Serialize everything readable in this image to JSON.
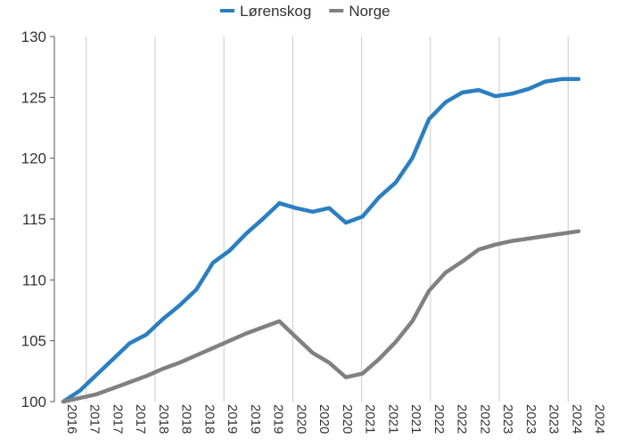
{
  "chart_data": {
    "type": "line",
    "title": "",
    "xlabel": "",
    "ylabel": "",
    "ylim": [
      100,
      130
    ],
    "yticks": [
      100,
      105,
      110,
      115,
      120,
      125,
      130
    ],
    "grid": "vertical",
    "legend_position": "top-center",
    "x_tick_labels": [
      "2016",
      "2017",
      "2017",
      "2017",
      "2018",
      "2018",
      "2018",
      "2019",
      "2019",
      "2019",
      "2020",
      "2020",
      "2020",
      "2021",
      "2021",
      "2021",
      "2022",
      "2022",
      "2022",
      "2023",
      "2023",
      "2023",
      "2024",
      "2024"
    ],
    "series": [
      {
        "name": "Lørenskog",
        "color": "#2b7fc1",
        "values": [
          100.0,
          100.9,
          102.2,
          103.5,
          104.8,
          105.5,
          106.8,
          107.9,
          109.2,
          111.4,
          112.4,
          113.8,
          115.0,
          116.3,
          115.9,
          115.6,
          115.9,
          114.7,
          115.2,
          116.8,
          118.0,
          120.0,
          123.2,
          124.6,
          125.4,
          125.6,
          125.1,
          125.3,
          125.7,
          126.3,
          126.5,
          126.5
        ]
      },
      {
        "name": "Norge",
        "color": "#808080",
        "values": [
          100.0,
          100.3,
          100.6,
          101.1,
          101.6,
          102.1,
          102.7,
          103.2,
          103.8,
          104.4,
          105.0,
          105.6,
          106.1,
          106.6,
          105.3,
          104.0,
          103.2,
          102.0,
          102.3,
          103.5,
          104.9,
          106.6,
          109.1,
          110.6,
          111.5,
          112.5,
          112.9,
          113.2,
          113.4,
          113.6,
          113.8,
          114.0
        ]
      }
    ]
  }
}
